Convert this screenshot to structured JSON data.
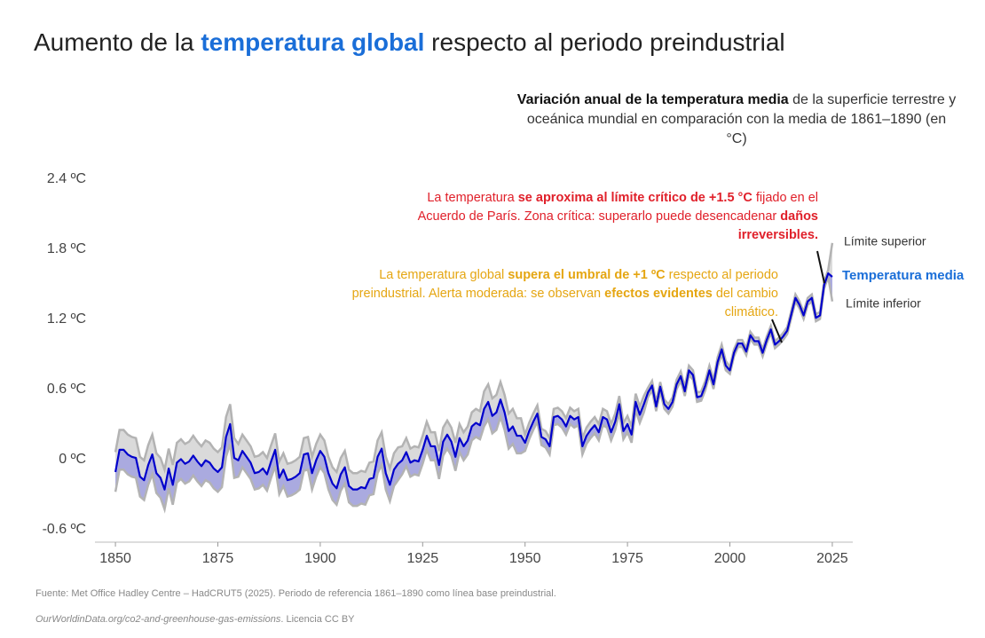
{
  "chart_data": {
    "type": "line",
    "title": {
      "before": "Aumento de la ",
      "highlight": "temperatura global",
      "after": " respecto al periodo preindustrial"
    },
    "subtitle": {
      "bold": "Variación anual de la temperatura media",
      "rest": " de la superficie terrestre y oceánica mundial en comparación con la media de 1861–1890 (en °C)"
    },
    "annotations": [
      [
        {
          "text": "La temperatura ",
          "bold": false
        },
        {
          "text": "se aproxima al límite crítico de +1.5 °C",
          "bold": true
        },
        {
          "text": " fijado en el Acuerdo de París. Zona crítica: superarlo puede desencadenar ",
          "bold": false
        },
        {
          "text": "daños irreversibles.",
          "bold": true
        }
      ],
      [
        {
          "text": "La temperatura global ",
          "bold": false
        },
        {
          "text": "supera el umbral de +1 ºC",
          "bold": true
        },
        {
          "text": " respecto al periodo preindustrial. Alerta moderada: se observan ",
          "bold": false
        },
        {
          "text": "efectos evidentes",
          "bold": true
        },
        {
          "text": " del cambio climático.",
          "bold": false
        }
      ]
    ],
    "source": "Fuente: Met Office Hadley Centre – HadCRUT5 (2025). Periodo de referencia 1861–1890 como línea base preindustrial.",
    "license": {
      "link": "OurWorldinData.org/co2-and-greenhouse-gas-emissions",
      "text": ". Licencia CC BY"
    },
    "x": [
      1850,
      1851,
      1852,
      1853,
      1854,
      1855,
      1856,
      1857,
      1858,
      1859,
      1860,
      1861,
      1862,
      1863,
      1864,
      1865,
      1866,
      1867,
      1868,
      1869,
      1870,
      1871,
      1872,
      1873,
      1874,
      1875,
      1876,
      1877,
      1878,
      1879,
      1880,
      1881,
      1882,
      1883,
      1884,
      1885,
      1886,
      1887,
      1888,
      1889,
      1890,
      1891,
      1892,
      1893,
      1894,
      1895,
      1896,
      1897,
      1898,
      1899,
      1900,
      1901,
      1902,
      1903,
      1904,
      1905,
      1906,
      1907,
      1908,
      1909,
      1910,
      1911,
      1912,
      1913,
      1914,
      1915,
      1916,
      1917,
      1918,
      1919,
      1920,
      1921,
      1922,
      1923,
      1924,
      1925,
      1926,
      1927,
      1928,
      1929,
      1930,
      1931,
      1932,
      1933,
      1934,
      1935,
      1936,
      1937,
      1938,
      1939,
      1940,
      1941,
      1942,
      1943,
      1944,
      1945,
      1946,
      1947,
      1948,
      1949,
      1950,
      1951,
      1952,
      1953,
      1954,
      1955,
      1956,
      1957,
      1958,
      1959,
      1960,
      1961,
      1962,
      1963,
      1964,
      1965,
      1966,
      1967,
      1968,
      1969,
      1970,
      1971,
      1972,
      1973,
      1974,
      1975,
      1976,
      1977,
      1978,
      1979,
      1980,
      1981,
      1982,
      1983,
      1984,
      1985,
      1986,
      1987,
      1988,
      1989,
      1990,
      1991,
      1992,
      1993,
      1994,
      1995,
      1996,
      1997,
      1998,
      1999,
      2000,
      2001,
      2002,
      2003,
      2004,
      2005,
      2006,
      2007,
      2008,
      2009,
      2010,
      2011,
      2012,
      2013,
      2014,
      2015,
      2016,
      2017,
      2018,
      2019,
      2020,
      2021,
      2022,
      2023,
      2024,
      2025
    ],
    "series": [
      {
        "name": "Temperatura media",
        "color": "#0000cc",
        "values": [
          -0.06,
          0.13,
          0.13,
          0.09,
          0.07,
          0.06,
          -0.1,
          -0.13,
          0.0,
          0.09,
          -0.07,
          -0.11,
          -0.21,
          -0.03,
          -0.17,
          0.02,
          0.05,
          0.01,
          0.03,
          0.08,
          0.03,
          -0.01,
          0.04,
          0.02,
          -0.03,
          -0.06,
          -0.02,
          0.24,
          0.35,
          0.06,
          0.04,
          0.12,
          0.07,
          0.02,
          -0.07,
          -0.06,
          -0.03,
          -0.08,
          0.03,
          0.13,
          -0.11,
          -0.04,
          -0.13,
          -0.12,
          -0.1,
          -0.07,
          0.09,
          0.1,
          -0.07,
          0.04,
          0.12,
          0.07,
          -0.07,
          -0.16,
          -0.2,
          -0.08,
          -0.02,
          -0.18,
          -0.21,
          -0.21,
          -0.19,
          -0.2,
          -0.12,
          -0.11,
          0.07,
          0.14,
          -0.07,
          -0.17,
          -0.04,
          0.01,
          0.04,
          0.11,
          0.02,
          0.04,
          0.03,
          0.13,
          0.25,
          0.16,
          0.16,
          0.0,
          0.2,
          0.26,
          0.2,
          0.07,
          0.23,
          0.16,
          0.21,
          0.33,
          0.36,
          0.34,
          0.48,
          0.54,
          0.42,
          0.45,
          0.56,
          0.45,
          0.29,
          0.33,
          0.25,
          0.25,
          0.19,
          0.29,
          0.37,
          0.44,
          0.24,
          0.22,
          0.16,
          0.41,
          0.42,
          0.39,
          0.33,
          0.42,
          0.39,
          0.41,
          0.16,
          0.25,
          0.3,
          0.34,
          0.28,
          0.41,
          0.39,
          0.28,
          0.37,
          0.52,
          0.29,
          0.35,
          0.26,
          0.54,
          0.43,
          0.52,
          0.62,
          0.68,
          0.5,
          0.67,
          0.52,
          0.48,
          0.54,
          0.69,
          0.76,
          0.63,
          0.81,
          0.77,
          0.58,
          0.59,
          0.68,
          0.81,
          0.69,
          0.88,
          0.99,
          0.85,
          0.81,
          0.96,
          1.04,
          1.04,
          0.97,
          1.11,
          1.06,
          1.06,
          0.96,
          1.07,
          1.16,
          1.03,
          1.06,
          1.1,
          1.15,
          1.29,
          1.43,
          1.37,
          1.28,
          1.4,
          1.43,
          1.26,
          1.28,
          1.54,
          1.64,
          1.61
        ]
      },
      {
        "name": "Límite superior",
        "color": "#b3b3b3",
        "values": [
          0.11,
          0.3,
          0.3,
          0.26,
          0.24,
          0.23,
          0.07,
          0.04,
          0.17,
          0.26,
          0.1,
          0.06,
          -0.04,
          0.14,
          0.0,
          0.19,
          0.22,
          0.18,
          0.2,
          0.25,
          0.2,
          0.16,
          0.21,
          0.19,
          0.14,
          0.11,
          0.15,
          0.41,
          0.52,
          0.23,
          0.18,
          0.26,
          0.21,
          0.16,
          0.07,
          0.08,
          0.11,
          0.06,
          0.17,
          0.27,
          0.03,
          0.1,
          0.01,
          0.02,
          0.04,
          0.07,
          0.23,
          0.24,
          0.07,
          0.18,
          0.26,
          0.21,
          0.07,
          -0.02,
          -0.06,
          0.06,
          0.12,
          -0.04,
          -0.07,
          -0.07,
          -0.05,
          -0.06,
          0.02,
          0.03,
          0.21,
          0.28,
          0.07,
          -0.03,
          0.1,
          0.15,
          0.16,
          0.23,
          0.14,
          0.16,
          0.15,
          0.25,
          0.37,
          0.28,
          0.28,
          0.12,
          0.32,
          0.38,
          0.32,
          0.19,
          0.35,
          0.28,
          0.33,
          0.45,
          0.48,
          0.46,
          0.63,
          0.69,
          0.57,
          0.6,
          0.71,
          0.6,
          0.44,
          0.48,
          0.4,
          0.4,
          0.26,
          0.36,
          0.44,
          0.51,
          0.31,
          0.29,
          0.23,
          0.48,
          0.49,
          0.46,
          0.4,
          0.49,
          0.46,
          0.48,
          0.23,
          0.32,
          0.37,
          0.41,
          0.35,
          0.48,
          0.46,
          0.35,
          0.44,
          0.59,
          0.36,
          0.42,
          0.33,
          0.61,
          0.5,
          0.59,
          0.66,
          0.72,
          0.54,
          0.71,
          0.56,
          0.52,
          0.58,
          0.73,
          0.8,
          0.67,
          0.85,
          0.81,
          0.62,
          0.63,
          0.72,
          0.85,
          0.73,
          0.92,
          1.03,
          0.89,
          0.84,
          0.99,
          1.07,
          1.07,
          1.0,
          1.14,
          1.09,
          1.09,
          0.99,
          1.1,
          1.19,
          1.06,
          1.09,
          1.13,
          1.18,
          1.32,
          1.46,
          1.4,
          1.31,
          1.43,
          1.46,
          1.29,
          1.31,
          1.57,
          1.67,
          1.9
        ]
      },
      {
        "name": "Límite inferior",
        "color": "#9a9ae0",
        "values": [
          -0.23,
          -0.04,
          -0.04,
          -0.08,
          -0.1,
          -0.11,
          -0.27,
          -0.3,
          -0.17,
          -0.08,
          -0.24,
          -0.28,
          -0.38,
          -0.2,
          -0.34,
          -0.15,
          -0.12,
          -0.16,
          -0.14,
          -0.09,
          -0.14,
          -0.18,
          -0.13,
          -0.15,
          -0.2,
          -0.23,
          -0.19,
          0.07,
          0.18,
          -0.11,
          -0.1,
          -0.02,
          -0.07,
          -0.12,
          -0.21,
          -0.2,
          -0.17,
          -0.22,
          -0.11,
          -0.01,
          -0.25,
          -0.18,
          -0.27,
          -0.26,
          -0.24,
          -0.21,
          -0.05,
          -0.04,
          -0.21,
          -0.1,
          -0.02,
          -0.07,
          -0.21,
          -0.3,
          -0.34,
          -0.22,
          -0.16,
          -0.32,
          -0.35,
          -0.35,
          -0.33,
          -0.34,
          -0.26,
          -0.25,
          -0.07,
          0.0,
          -0.21,
          -0.31,
          -0.18,
          -0.13,
          -0.08,
          -0.01,
          -0.1,
          -0.08,
          -0.09,
          0.01,
          0.13,
          0.04,
          0.04,
          -0.12,
          0.08,
          0.14,
          0.08,
          -0.05,
          0.11,
          0.04,
          0.09,
          0.21,
          0.24,
          0.22,
          0.33,
          0.39,
          0.27,
          0.3,
          0.41,
          0.3,
          0.14,
          0.18,
          0.1,
          0.1,
          0.12,
          0.22,
          0.3,
          0.37,
          0.17,
          0.15,
          0.09,
          0.34,
          0.35,
          0.32,
          0.26,
          0.35,
          0.32,
          0.34,
          0.09,
          0.18,
          0.23,
          0.27,
          0.21,
          0.34,
          0.32,
          0.21,
          0.3,
          0.45,
          0.22,
          0.28,
          0.19,
          0.47,
          0.36,
          0.45,
          0.58,
          0.64,
          0.46,
          0.63,
          0.48,
          0.44,
          0.5,
          0.65,
          0.72,
          0.59,
          0.77,
          0.73,
          0.54,
          0.55,
          0.64,
          0.77,
          0.65,
          0.84,
          0.95,
          0.81,
          0.78,
          0.93,
          1.01,
          1.01,
          0.94,
          1.08,
          1.03,
          1.03,
          0.93,
          1.04,
          1.13,
          1.0,
          1.03,
          1.07,
          1.12,
          1.26,
          1.4,
          1.34,
          1.25,
          1.37,
          1.4,
          1.23,
          1.25,
          1.51,
          1.61,
          1.4
        ]
      }
    ],
    "xlim": [
      1845,
      2030
    ],
    "xticks": [
      1850,
      1875,
      1900,
      1925,
      1950,
      1975,
      2000,
      2025
    ],
    "ylim": [
      -0.6,
      2.4
    ],
    "yticks": [
      {
        "value": -0.6,
        "label": "-0.6 ºC"
      },
      {
        "value": 0,
        "label": "0 ºC"
      },
      {
        "value": 0.6,
        "label": "0.6 ºC"
      },
      {
        "value": 1.2,
        "label": "1.2 ºC"
      },
      {
        "value": 1.8,
        "label": "1.8 ºC"
      },
      {
        "value": 2.4,
        "label": "2.4 ºC"
      }
    ],
    "grid": false
  }
}
